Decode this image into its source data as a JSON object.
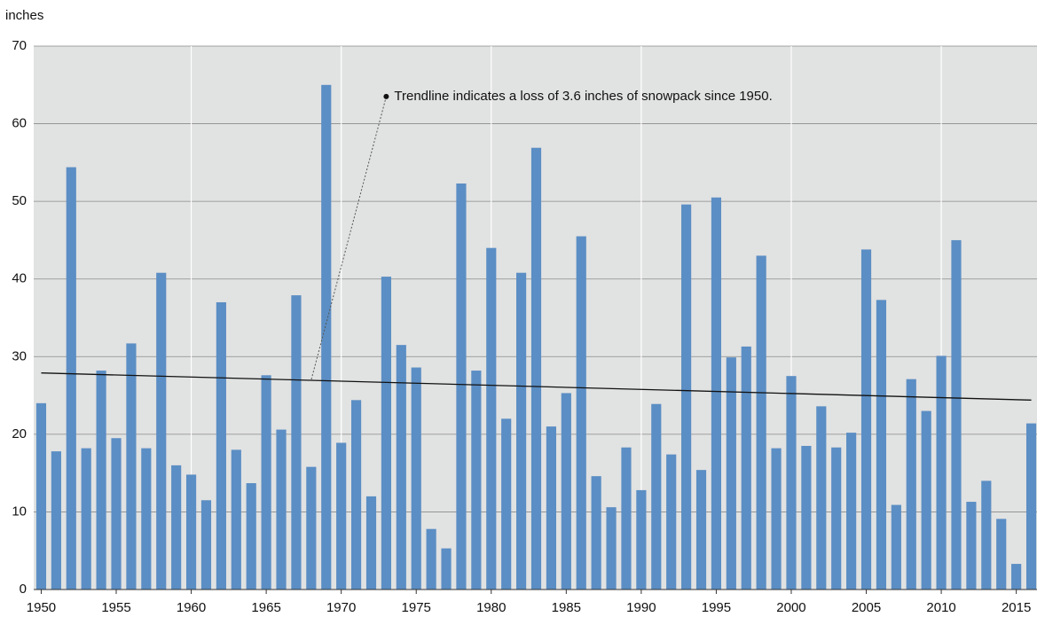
{
  "chart_data": {
    "type": "bar",
    "y_label": "inches",
    "annotation": {
      "text": "Trendline indicates a loss of 3.6 inches of snowpack since 1950.",
      "x": 1973,
      "y": 63.5,
      "target_x": 1968,
      "target_y": 27
    },
    "x": [
      1950,
      1951,
      1952,
      1953,
      1954,
      1955,
      1956,
      1957,
      1958,
      1959,
      1960,
      1961,
      1962,
      1963,
      1964,
      1965,
      1966,
      1967,
      1968,
      1969,
      1970,
      1971,
      1972,
      1973,
      1974,
      1975,
      1976,
      1977,
      1978,
      1979,
      1980,
      1981,
      1982,
      1983,
      1984,
      1985,
      1986,
      1987,
      1988,
      1989,
      1990,
      1991,
      1992,
      1993,
      1994,
      1995,
      1996,
      1997,
      1998,
      1999,
      2000,
      2001,
      2002,
      2003,
      2004,
      2005,
      2006,
      2007,
      2008,
      2009,
      2010,
      2011,
      2012,
      2013,
      2014,
      2015,
      2016
    ],
    "values": [
      24,
      17.8,
      54.4,
      18.2,
      28.2,
      19.5,
      31.7,
      18.2,
      40.8,
      16,
      14.8,
      11.5,
      37,
      18,
      13.7,
      27.6,
      20.6,
      37.9,
      15.8,
      65,
      18.9,
      24.4,
      12,
      40.3,
      31.5,
      28.6,
      7.8,
      5.3,
      52.3,
      28.2,
      44,
      22,
      40.8,
      56.9,
      21,
      25.3,
      45.5,
      14.6,
      10.6,
      18.3,
      12.8,
      23.9,
      17.4,
      49.6,
      15.4,
      50.5,
      29.9,
      31.3,
      43,
      18.2,
      27.5,
      18.5,
      23.6,
      18.3,
      20.2,
      43.8,
      37.3,
      10.9,
      27.1,
      23,
      30.1,
      45,
      11.3,
      14,
      9.1,
      3.3,
      21.4
    ],
    "color": "#5b8ec4",
    "trendline": {
      "x": [
        1950,
        2016
      ],
      "values": [
        27.9,
        24.4
      ],
      "color": "#111111"
    },
    "xlim": [
      1949.5,
      2016.5
    ],
    "xticks": [
      1950,
      1955,
      1960,
      1965,
      1970,
      1975,
      1980,
      1985,
      1990,
      1995,
      2000,
      2005,
      2010,
      2015
    ],
    "x_grid_lines": [
      1960,
      1970,
      1980,
      1990,
      2000,
      2010
    ],
    "ylim": [
      0,
      70
    ],
    "yticks": [
      0,
      10,
      20,
      30,
      40,
      50,
      60,
      70
    ],
    "grid": true,
    "background": "#e1e2e2"
  }
}
